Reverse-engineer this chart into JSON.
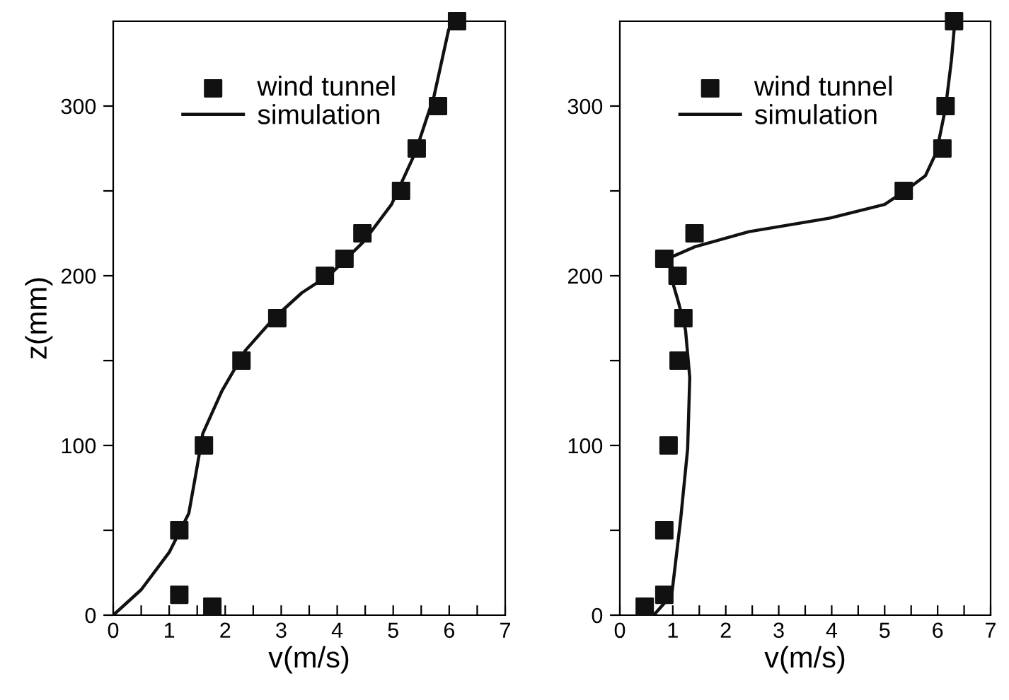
{
  "chart_data": [
    {
      "type": "scatter",
      "xlabel": "v(m/s)",
      "ylabel": "z(mm)",
      "xlim": [
        0,
        7
      ],
      "ylim": [
        0,
        350
      ],
      "xticks": [
        0,
        {
          "value": 0.5,
          "label": null
        },
        1,
        {
          "value": 1.5,
          "label": null
        },
        2,
        {
          "value": 2.5,
          "label": null
        },
        3,
        {
          "value": 3.5,
          "label": null
        },
        4,
        {
          "value": 4.5,
          "label": null
        },
        5,
        {
          "value": 5.5,
          "label": null
        },
        6,
        {
          "value": 6.5,
          "label": null
        },
        7
      ],
      "yticks": [
        0,
        {
          "value": 50,
          "label": null
        },
        100,
        {
          "value": 150,
          "label": null
        },
        200,
        {
          "value": 250,
          "label": null
        },
        300
      ],
      "legend": "top",
      "grid": false,
      "series": [
        {
          "name": "wind tunnel",
          "marker": "square",
          "color": "#111111",
          "x": [
            1.77,
            1.18,
            1.18,
            1.62,
            2.29,
            2.93,
            3.78,
            4.13,
            4.45,
            5.14,
            5.42,
            5.8,
            6.14
          ],
          "values": [
            5,
            12,
            50,
            100,
            150,
            175,
            200,
            210,
            225,
            250,
            275,
            300,
            350
          ]
        },
        {
          "name": "simulation",
          "type": "line",
          "marker": "none",
          "line_style": "solid",
          "color": "#111111",
          "x": [
            0,
            0.5,
            1.0,
            1.35,
            1.48,
            1.6,
            1.94,
            2.36,
            2.87,
            3.37,
            3.88,
            4.47,
            4.97,
            5.4,
            5.73,
            5.99,
            6.07
          ],
          "values": [
            0,
            15,
            37,
            60,
            84,
            107,
            132,
            156,
            175,
            190,
            201,
            220,
            242,
            273,
            306,
            345,
            349
          ]
        }
      ]
    },
    {
      "type": "scatter",
      "xlabel": "v(m/s)",
      "xlim": [
        0,
        7
      ],
      "ylim": [
        0,
        350
      ],
      "xticks": [
        0,
        {
          "value": 0.5,
          "label": null
        },
        1,
        {
          "value": 1.5,
          "label": null
        },
        2,
        {
          "value": 2.5,
          "label": null
        },
        3,
        {
          "value": 3.5,
          "label": null
        },
        4,
        {
          "value": 4.5,
          "label": null
        },
        5,
        {
          "value": 5.5,
          "label": null
        },
        6,
        {
          "value": 6.5,
          "label": null
        },
        7
      ],
      "yticks": [
        0,
        {
          "value": 50,
          "label": null
        },
        100,
        {
          "value": 150,
          "label": null
        },
        200,
        {
          "value": 250,
          "label": null
        },
        300
      ],
      "legend": "top",
      "grid": false,
      "series": [
        {
          "name": "wind tunnel",
          "marker": "square",
          "color": "#111111",
          "x": [
            0.47,
            0.84,
            0.84,
            0.92,
            1.11,
            1.2,
            1.09,
            0.84,
            1.41,
            5.36,
            6.09,
            6.15,
            6.31
          ],
          "values": [
            5,
            12,
            50,
            100,
            150,
            175,
            200,
            210,
            225,
            250,
            275,
            300,
            350
          ]
        },
        {
          "name": "simulation",
          "type": "line",
          "marker": "none",
          "line_style": "solid",
          "color": "#111111",
          "x": [
            0.64,
            0.98,
            1.15,
            1.28,
            1.32,
            1.24,
            1.11,
            0.98,
            0.97,
            1.41,
            2.44,
            3.97,
            5.0,
            5.43,
            5.77,
            5.98,
            6.15,
            6.26,
            6.32
          ],
          "values": [
            0,
            12,
            57,
            98,
            140,
            168,
            184,
            198,
            211,
            217,
            226,
            234,
            242,
            251,
            259,
            273,
            299,
            327,
            348
          ]
        }
      ]
    }
  ]
}
